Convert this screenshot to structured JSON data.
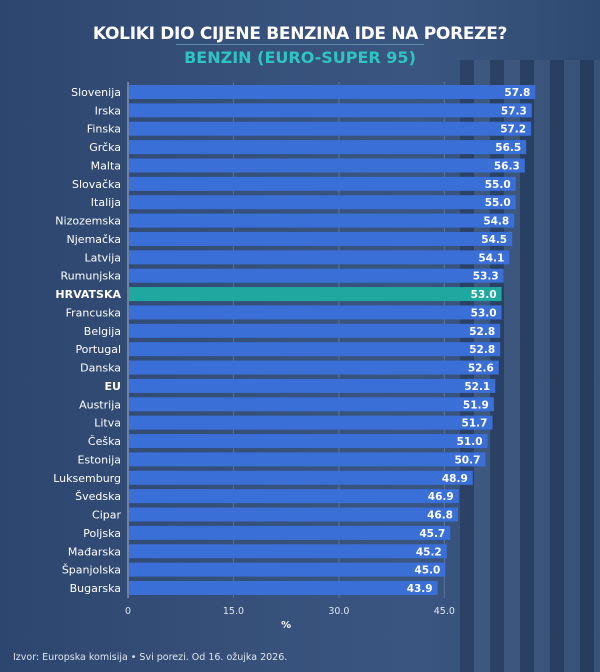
{
  "header": {
    "title": "KOLIKI DIO CIJENE BENZINA IDE NA POREZE?",
    "subtitle": "BENZIN (EURO-SUPER 95)"
  },
  "source": "Izvor: Europska komisija • Svi porezi. Od 16. ožujka 2026.",
  "colors": {
    "bar": "#3a6fd8",
    "highlight": "#1fa8a0",
    "accent": "#2ec4c4"
  },
  "chart_data": {
    "type": "bar",
    "orientation": "horizontal",
    "title": "KOLIKI DIO CIJENE BENZINA IDE NA POREZE?",
    "subtitle": "BENZIN (EURO-SUPER 95)",
    "xlabel": "%",
    "ylabel": "",
    "xlim": [
      0,
      57.8
    ],
    "xticks": [
      "0",
      "15.0",
      "30.0",
      "45.0"
    ],
    "xtick_values": [
      0,
      15,
      30,
      45
    ],
    "grid": true,
    "categories": [
      "Slovenija",
      "Irska",
      "Finska",
      "Grčka",
      "Malta",
      "Slovačka",
      "Italija",
      "Nizozemska",
      "Njemačka",
      "Latvija",
      "Rumunjska",
      "HRVATSKA",
      "Francuska",
      "Belgija",
      "Portugal",
      "Danska",
      "EU",
      "Austrija",
      "Litva",
      "Češka",
      "Estonija",
      "Luksemburg",
      "Švedska",
      "Cipar",
      "Poljska",
      "Mađarska",
      "Španjolska",
      "Bugarska"
    ],
    "values": [
      57.8,
      57.3,
      57.2,
      56.5,
      56.3,
      55.0,
      55.0,
      54.8,
      54.5,
      54.1,
      53.3,
      53.0,
      53.0,
      52.8,
      52.8,
      52.6,
      52.1,
      51.9,
      51.7,
      51.0,
      50.7,
      48.9,
      46.9,
      46.8,
      45.7,
      45.2,
      45.0,
      43.9
    ],
    "labels": [
      "57.8",
      "57.3",
      "57.2",
      "56.5",
      "56.3",
      "55.0",
      "55.0",
      "54.8",
      "54.5",
      "54.1",
      "53.3",
      "53.0",
      "53.0",
      "52.8",
      "52.8",
      "52.6",
      "52.1",
      "51.9",
      "51.7",
      "51.0",
      "50.7",
      "48.9",
      "46.9",
      "46.8",
      "45.7",
      "45.2",
      "45.0",
      "43.9"
    ],
    "highlight": [
      "HRVATSKA"
    ],
    "bold": [
      "HRVATSKA",
      "EU"
    ]
  }
}
